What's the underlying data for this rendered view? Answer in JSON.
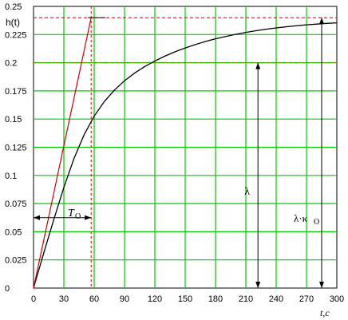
{
  "chart_data": {
    "type": "line",
    "ylabel": "h(t)",
    "xlabel": "t,c",
    "xlim": [
      0,
      300
    ],
    "ylim": [
      0,
      0.25
    ],
    "x_ticks": [
      0,
      30,
      60,
      90,
      120,
      150,
      180,
      210,
      240,
      270,
      300
    ],
    "y_ticks": [
      "0",
      "0.025",
      "0.05",
      "0.075",
      "0.1",
      "0.125",
      "0.15",
      "0.175",
      "0.2",
      "0.225",
      "0.25"
    ],
    "grid": true,
    "colors": {
      "grid": "#00cc00",
      "curve": "#000000",
      "tangent": "#cc0000",
      "dashed_red": "#cc0000",
      "dashed_olive": "#808000"
    },
    "series": [
      {
        "kind": "step-response",
        "x": [
          0,
          10,
          20,
          30,
          40,
          50,
          60,
          70,
          80,
          90,
          100,
          110,
          120,
          130,
          140,
          150,
          160,
          170,
          180,
          190,
          200,
          210,
          220,
          230,
          240,
          250,
          260,
          270,
          280,
          290,
          300
        ],
        "y": [
          0,
          0.0308,
          0.0607,
          0.0893,
          0.1149,
          0.136,
          0.1526,
          0.1655,
          0.1757,
          0.184,
          0.1908,
          0.1966,
          0.2015,
          0.2059,
          0.2097,
          0.2131,
          0.2161,
          0.2188,
          0.2212,
          0.2233,
          0.2252,
          0.2269,
          0.2284,
          0.2297,
          0.2309,
          0.2319,
          0.2328,
          0.2336,
          0.2343,
          0.2349,
          0.2354
        ]
      },
      {
        "kind": "tangent",
        "x": [
          0,
          57
        ],
        "y": [
          0,
          0.24
        ]
      }
    ],
    "reference_lines": {
      "h_red_dashed": 0.24,
      "h_olive_dashed": 0.2,
      "v_dashed": 57
    },
    "annotations": {
      "T0": {
        "label": "T",
        "sub": "O",
        "x_from": 0,
        "x_to": 57,
        "y": 0.0625
      },
      "lambda": {
        "label": "λ",
        "x": 222,
        "y_from": 0,
        "y_to": 0.2
      },
      "lambda_k0": {
        "label": "λ·κ",
        "sub": "O",
        "x": 285,
        "y_from": 0,
        "y_to": 0.24
      }
    }
  }
}
